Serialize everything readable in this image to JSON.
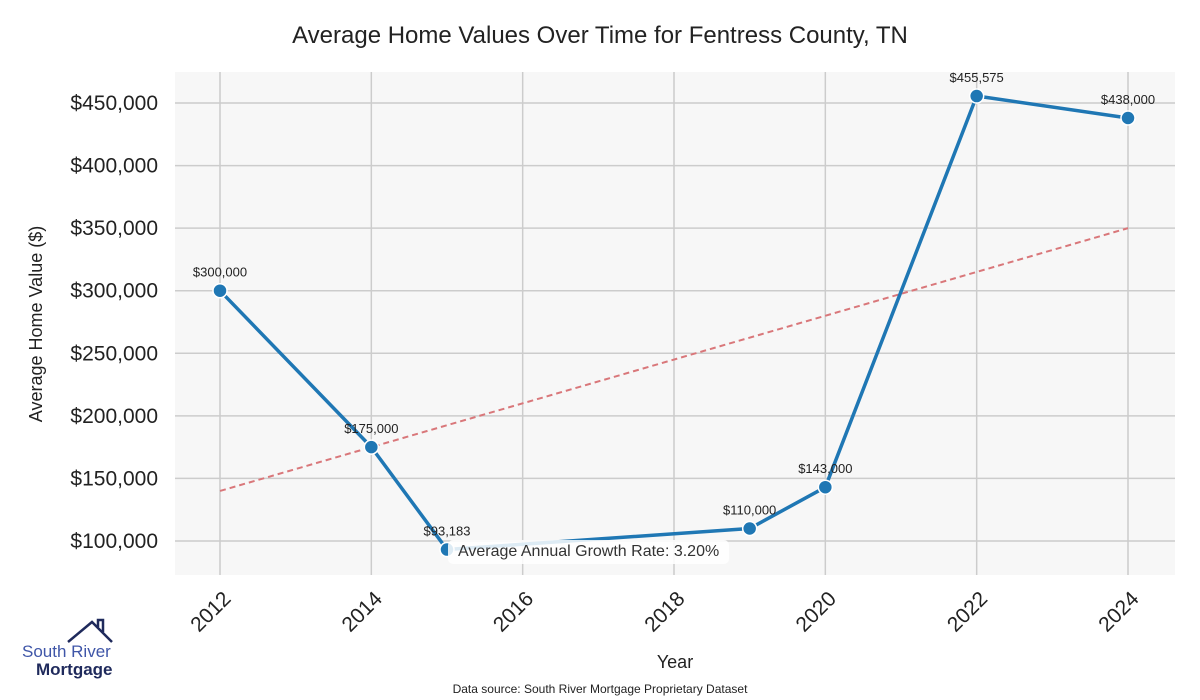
{
  "chart_data": {
    "type": "line",
    "title": "Average Home Values Over Time for Fentress County, TN",
    "xlabel": "Year",
    "ylabel": "Average Home Value ($)",
    "x": [
      2012,
      2014,
      2015,
      2019,
      2020,
      2022,
      2024
    ],
    "series": [
      {
        "name": "Average Home Value",
        "values": [
          300000,
          175000,
          93183,
          110000,
          143000,
          455575,
          438000
        ],
        "color": "#1f77b4"
      }
    ],
    "data_labels": [
      "$300,000",
      "$175,000",
      "$93,183",
      "$110,000",
      "$143,000",
      "$455,575",
      "$438,000"
    ],
    "trend_line": {
      "x": [
        2012,
        2024
      ],
      "values": [
        140000,
        350000
      ],
      "color": "#d9777a",
      "style": "dashed"
    },
    "xticks": [
      2012,
      2014,
      2016,
      2018,
      2020,
      2022,
      2024
    ],
    "yticks": [
      100000,
      150000,
      200000,
      250000,
      300000,
      350000,
      400000,
      450000
    ],
    "ytick_labels": [
      "$100,000",
      "$150,000",
      "$200,000",
      "$250,000",
      "$300,000",
      "$350,000",
      "$400,000",
      "$450,000"
    ],
    "xlim": [
      2011.3,
      2025.3
    ],
    "ylim": [
      73000,
      475000
    ],
    "grid": true,
    "annotation": "Average Annual Growth Rate: 3.20%"
  },
  "footer": {
    "source": "Data source: South River Mortgage Proprietary Dataset"
  },
  "logo": {
    "line1": "South River",
    "line2": "Mortgage"
  }
}
